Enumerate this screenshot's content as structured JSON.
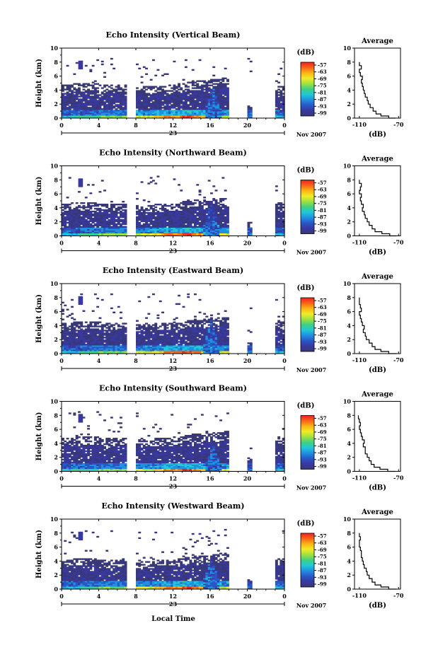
{
  "chart_data": {
    "type": "heatmap",
    "date_label": "Nov 2007",
    "day_label": "23",
    "xlabel_bottom": "Local Time",
    "x_ticks": [
      "0",
      "4",
      "8",
      "12",
      "16",
      "20",
      "0"
    ],
    "xlim": [
      0,
      24
    ],
    "y_ticks": [
      "0",
      "2",
      "4",
      "6",
      "8",
      "10"
    ],
    "ylim": [
      0,
      10
    ],
    "ylabel": "Height (km)",
    "colorbar": {
      "unit": "(dB)",
      "ticks": [
        "-57",
        "-63",
        "-69",
        "-75",
        "-81",
        "-87",
        "-93",
        "-99"
      ],
      "colors": [
        "#f02020",
        "#f86418",
        "#fcb414",
        "#f0ec28",
        "#a0e040",
        "#40d080",
        "#20c8d8",
        "#2090e0",
        "#2858c8",
        "#3838a0",
        "#383878"
      ]
    },
    "data_gaps_hours": [
      [
        6.8,
        7.2
      ],
      [
        18.0,
        19.5
      ],
      [
        20.4,
        21.6
      ],
      [
        22.5,
        23.0
      ]
    ],
    "panels": [
      {
        "title": "Echo Intensity (Vertical Beam)",
        "top_km": [
          4.8,
          4.9,
          4.9,
          5.0,
          4.8,
          4.7,
          4.7,
          0,
          4.6,
          4.5,
          4.6,
          4.8,
          5.0,
          5.2,
          5.3,
          5.4,
          5.6,
          5.8,
          0,
          0,
          1.6,
          0,
          0,
          4.5
        ],
        "surface_strength": [
          0.3,
          0.4,
          0.4,
          0.4,
          0.5,
          0.5,
          0.5,
          0,
          0.6,
          0.6,
          0.7,
          0.8,
          0.8,
          0.9,
          0.8,
          0.7,
          0.7,
          0.6,
          0,
          0,
          0.2,
          0,
          0,
          0.3
        ],
        "plume": {
          "center_h": 16.2,
          "top_km": 4.5
        }
      },
      {
        "title": "Echo Intensity (Northward Beam)",
        "top_km": [
          4.6,
          4.7,
          4.8,
          4.8,
          4.6,
          4.6,
          4.5,
          0,
          4.4,
          4.4,
          4.5,
          4.6,
          4.8,
          5.0,
          5.1,
          5.2,
          5.4,
          5.6,
          0,
          0,
          1.8,
          0,
          0,
          4.8
        ],
        "surface_strength": [
          0.3,
          0.3,
          0.4,
          0.4,
          0.5,
          0.5,
          0.5,
          0,
          0.6,
          0.6,
          0.7,
          0.8,
          0.8,
          0.9,
          0.8,
          0.7,
          0.7,
          0.6,
          0,
          0,
          0.2,
          0,
          0,
          0.3
        ],
        "plume": {
          "center_h": 16.0,
          "top_km": 5.0
        }
      },
      {
        "title": "Echo Intensity (Eastward Beam)",
        "top_km": [
          4.4,
          4.5,
          4.6,
          4.6,
          4.4,
          4.3,
          4.3,
          0,
          4.2,
          4.2,
          4.3,
          4.4,
          4.6,
          4.8,
          4.9,
          5.0,
          5.2,
          5.4,
          0,
          0,
          1.5,
          0,
          0,
          4.6
        ],
        "surface_strength": [
          0.3,
          0.3,
          0.4,
          0.4,
          0.5,
          0.5,
          0.5,
          0,
          0.6,
          0.6,
          0.7,
          0.8,
          0.8,
          0.9,
          0.8,
          0.7,
          0.7,
          0.6,
          0,
          0,
          0.2,
          0,
          0,
          0.3
        ],
        "plume": {
          "center_h": 16.0,
          "top_km": 4.8
        }
      },
      {
        "title": "Echo Intensity (Southward Beam)",
        "top_km": [
          4.8,
          4.9,
          5.0,
          5.0,
          4.8,
          4.7,
          4.7,
          0,
          4.6,
          4.6,
          4.7,
          4.8,
          5.0,
          5.2,
          5.3,
          5.4,
          5.6,
          5.8,
          0,
          0,
          1.8,
          0,
          0,
          5.0
        ],
        "surface_strength": [
          0.3,
          0.4,
          0.4,
          0.4,
          0.5,
          0.5,
          0.5,
          0,
          0.6,
          0.6,
          0.7,
          0.8,
          0.8,
          0.9,
          0.8,
          0.7,
          0.7,
          0.6,
          0,
          0,
          0.2,
          0,
          0,
          0.3
        ],
        "plume": {
          "center_h": 16.2,
          "top_km": 3.8
        }
      },
      {
        "title": "Echo Intensity (Westward Beam)",
        "top_km": [
          4.2,
          4.3,
          4.4,
          4.4,
          4.2,
          4.1,
          4.1,
          0,
          4.0,
          4.0,
          4.1,
          4.2,
          4.4,
          4.6,
          4.7,
          4.8,
          5.0,
          5.2,
          0,
          0,
          1.4,
          0,
          0,
          4.4
        ],
        "surface_strength": [
          0.3,
          0.3,
          0.4,
          0.4,
          0.5,
          0.5,
          0.5,
          0,
          0.6,
          0.6,
          0.7,
          0.8,
          0.8,
          0.9,
          0.8,
          0.7,
          0.7,
          0.6,
          0,
          0,
          0.2,
          0,
          0,
          0.3
        ],
        "plume": {
          "center_h": 16.0,
          "top_km": 4.5
        }
      }
    ],
    "average_profile": {
      "title": "Average",
      "xlabel": "(dB)",
      "x_ticks": [
        "-110",
        "-70"
      ],
      "xlim": [
        -115,
        -68
      ],
      "y_ticks": [
        "0",
        "2",
        "4",
        "6",
        "8",
        "10"
      ],
      "ylim": [
        0,
        10
      ],
      "profiles": [
        {
          "height_km": [
            0,
            0.3,
            0.6,
            1.0,
            1.5,
            2.0,
            2.5,
            3.0,
            3.5,
            4.0,
            4.5,
            5.0,
            5.5,
            6.0,
            6.5,
            7.0,
            7.5,
            8.0
          ],
          "db": [
            -73,
            -80,
            -88,
            -93,
            -96,
            -99,
            -101,
            -102,
            -104,
            -105,
            -106,
            -107,
            -108,
            -107,
            -109,
            -110,
            -108,
            -110
          ]
        },
        {
          "height_km": [
            0,
            0.3,
            0.6,
            1.0,
            1.5,
            2.0,
            2.5,
            3.0,
            3.5,
            4.0,
            4.5,
            5.0,
            5.5,
            6.0,
            6.5,
            7.0,
            7.5,
            8.0
          ],
          "db": [
            -72,
            -79,
            -87,
            -94,
            -97,
            -100,
            -102,
            -104,
            -105,
            -107,
            -106,
            -108,
            -109,
            -108,
            -110,
            -109,
            -108,
            -110
          ]
        },
        {
          "height_km": [
            0,
            0.3,
            0.6,
            1.0,
            1.5,
            2.0,
            2.5,
            3.0,
            3.5,
            4.0,
            4.5,
            5.0,
            5.5,
            6.0,
            6.5,
            7.0,
            7.5,
            8.0
          ],
          "db": [
            -72,
            -80,
            -88,
            -94,
            -97,
            -100,
            -103,
            -104,
            -106,
            -105,
            -107,
            -108,
            -109,
            -110,
            -108,
            -109,
            -110,
            -110
          ]
        },
        {
          "height_km": [
            0,
            0.3,
            0.6,
            1.0,
            1.5,
            2.0,
            2.5,
            3.0,
            3.5,
            4.0,
            4.5,
            5.0,
            5.5,
            6.0,
            6.5,
            7.0,
            7.5,
            8.0
          ],
          "db": [
            -73,
            -81,
            -89,
            -95,
            -98,
            -100,
            -102,
            -104,
            -104,
            -106,
            -105,
            -107,
            -108,
            -109,
            -110,
            -109,
            -110,
            -111
          ]
        },
        {
          "height_km": [
            0,
            0.3,
            0.6,
            1.0,
            1.5,
            2.0,
            2.5,
            3.0,
            3.5,
            4.0,
            4.5,
            5.0,
            5.5,
            6.0,
            6.5,
            7.0,
            7.5,
            8.0
          ],
          "db": [
            -72,
            -80,
            -88,
            -94,
            -97,
            -100,
            -102,
            -103,
            -105,
            -106,
            -107,
            -108,
            -108,
            -109,
            -110,
            -110,
            -109,
            -110
          ]
        }
      ]
    }
  }
}
